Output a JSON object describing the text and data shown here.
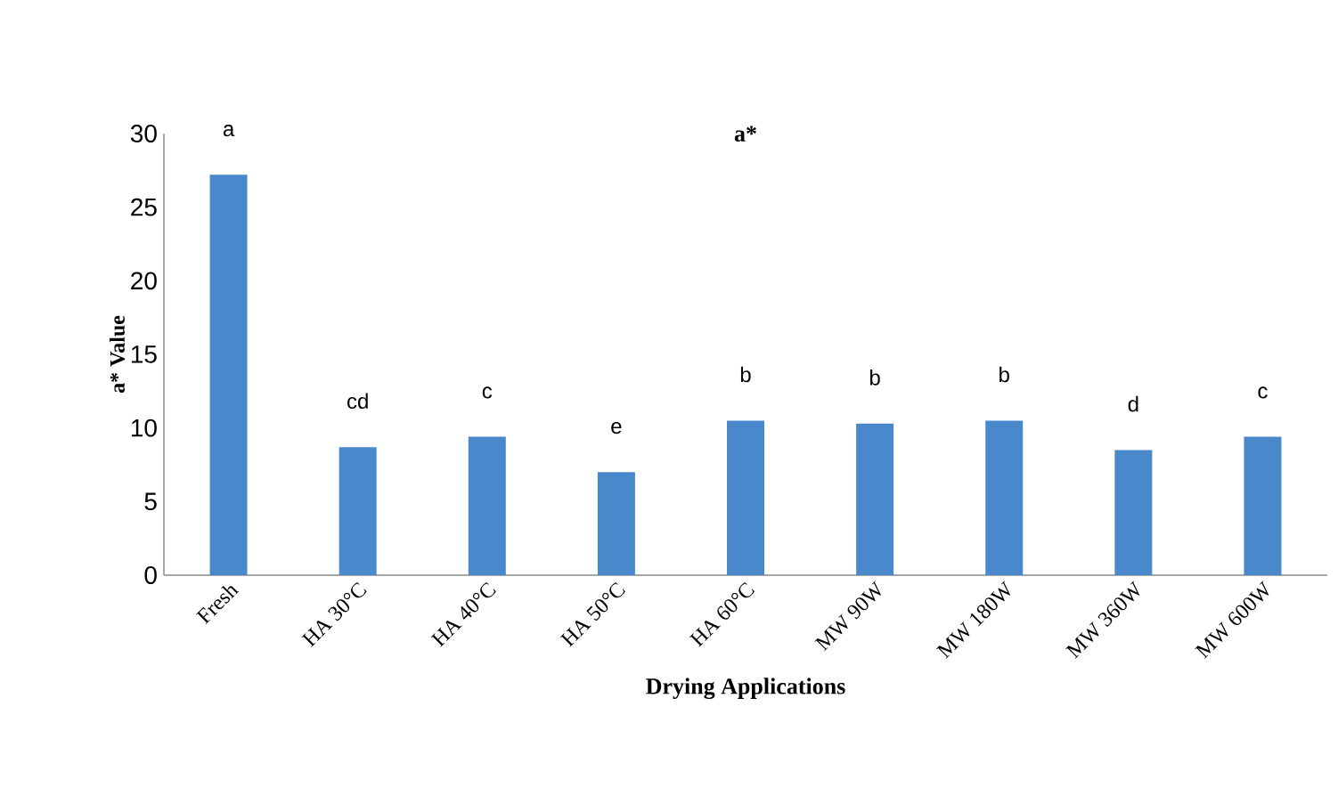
{
  "chart_data": {
    "type": "bar",
    "title": "a*",
    "xlabel": "Drying Applications",
    "ylabel": "a* Value",
    "categories": [
      "Fresh",
      "HA 30°C",
      "HA 40°C",
      "HA 50°C",
      "HA 60°C",
      "MW 90W",
      "MW 180W",
      "MW 360W",
      "MW 600W"
    ],
    "values": [
      27.2,
      8.7,
      9.4,
      7.0,
      10.5,
      10.3,
      10.5,
      8.5,
      9.4
    ],
    "color": "#4a88cc",
    "ylim": [
      0,
      30
    ],
    "yticks": [
      0,
      5,
      10,
      15,
      20,
      25,
      30
    ],
    "value_labels": [
      "a",
      "cd",
      "c",
      "e",
      "b",
      "b",
      "b",
      "d",
      "c"
    ]
  }
}
